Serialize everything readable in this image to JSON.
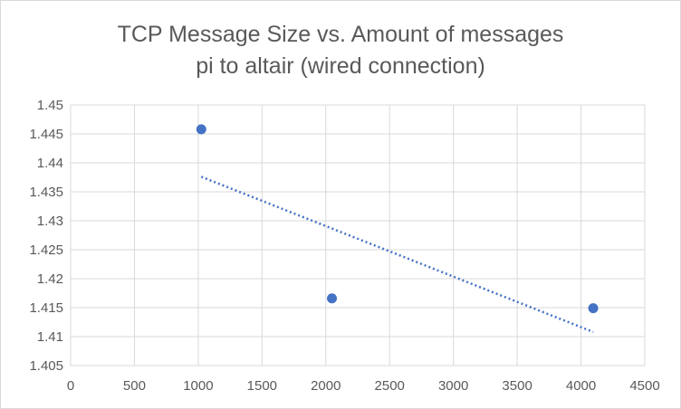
{
  "chart_data": {
    "type": "scatter",
    "title": "TCP Message Size vs. Amount of messages",
    "subtitle": "pi to altair (wired connection)",
    "xlabel": "",
    "ylabel": "",
    "xlim": [
      0,
      4500
    ],
    "ylim": [
      1.405,
      1.45
    ],
    "x_ticks": [
      "0",
      "500",
      "1000",
      "1500",
      "2000",
      "2500",
      "3000",
      "3500",
      "4000",
      "4500"
    ],
    "y_ticks": [
      "1.405",
      "1.41",
      "1.415",
      "1.42",
      "1.425",
      "1.43",
      "1.435",
      "1.44",
      "1.445",
      "1.45"
    ],
    "grid": true,
    "legend": "none",
    "series": [
      {
        "points": [
          {
            "x": 1024,
            "y": 1.4458
          },
          {
            "x": 2048,
            "y": 1.4166
          },
          {
            "x": 4096,
            "y": 1.4149
          }
        ],
        "color": "#4472c4"
      }
    ],
    "trendline": {
      "type": "linear",
      "style": "dotted",
      "color": "#4472c4",
      "start": {
        "x": 1024,
        "y": 1.4376
      },
      "end": {
        "x": 4096,
        "y": 1.4108
      }
    }
  }
}
